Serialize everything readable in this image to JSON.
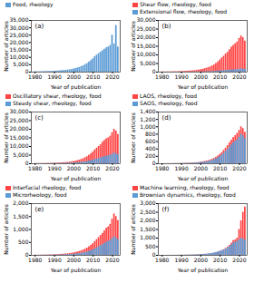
{
  "chart_data": [
    {
      "type": "bar",
      "annotations": [
        "(a)"
      ],
      "xlabel": "Year of publication",
      "ylabel": "Number of articles",
      "x": [
        1980,
        1981,
        1982,
        1983,
        1984,
        1985,
        1986,
        1987,
        1988,
        1989,
        1990,
        1991,
        1992,
        1993,
        1994,
        1995,
        1996,
        1997,
        1998,
        1999,
        2000,
        2001,
        2002,
        2003,
        2004,
        2005,
        2006,
        2007,
        2008,
        2009,
        2010,
        2011,
        2012,
        2013,
        2014,
        2015,
        2016,
        2017,
        2018,
        2019,
        2020,
        2021,
        2022,
        2023
      ],
      "series": [
        {
          "name": "Food, rheology",
          "color": "#5B9BD5",
          "values": [
            200,
            220,
            240,
            260,
            300,
            350,
            400,
            450,
            500,
            560,
            630,
            700,
            800,
            900,
            1000,
            1100,
            1250,
            1400,
            1600,
            1800,
            2100,
            2400,
            2800,
            3200,
            3700,
            4300,
            5000,
            5800,
            6800,
            7800,
            9000,
            10500,
            11500,
            12500,
            13500,
            14500,
            15500,
            16500,
            17000,
            18000,
            25000,
            19000,
            31500,
            17000
          ]
        }
      ],
      "xlim": [
        1978,
        2024
      ],
      "xticks": [
        1980,
        1990,
        2000,
        2010,
        2020
      ],
      "ylim": [
        0,
        35000
      ],
      "yticks": [
        0,
        {
          "value": 5000,
          "label": "5,000"
        },
        {
          "value": 10000,
          "label": "10,000"
        },
        {
          "value": 15000,
          "label": "15,000"
        },
        {
          "value": 20000,
          "label": "20,000"
        },
        {
          "value": 25000,
          "label": "25,000"
        },
        {
          "value": 30000,
          "label": "30,000"
        },
        {
          "value": 35000,
          "label": "35,000"
        }
      ]
    },
    {
      "type": "bar",
      "annotations": [
        "(b)"
      ],
      "xlabel": "Year of publication",
      "ylabel": "Number of articles",
      "x": [
        1980,
        1981,
        1982,
        1983,
        1984,
        1985,
        1986,
        1987,
        1988,
        1989,
        1990,
        1991,
        1992,
        1993,
        1994,
        1995,
        1996,
        1997,
        1998,
        1999,
        2000,
        2001,
        2002,
        2003,
        2004,
        2005,
        2006,
        2007,
        2008,
        2009,
        2010,
        2011,
        2012,
        2013,
        2014,
        2015,
        2016,
        2017,
        2018,
        2019,
        2020,
        2021,
        2022,
        2023
      ],
      "series": [
        {
          "name": "Shear flow, rheology, food",
          "color": "#FF4444",
          "values": [
            100,
            110,
            120,
            130,
            150,
            170,
            200,
            230,
            260,
            300,
            350,
            400,
            460,
            520,
            600,
            680,
            780,
            900,
            1050,
            1200,
            1400,
            1600,
            1900,
            2200,
            2600,
            3000,
            3600,
            4200,
            5000,
            5900,
            7000,
            8200,
            9200,
            10500,
            11500,
            13000,
            14500,
            15500,
            16500,
            17500,
            19500,
            21000,
            20000,
            18000
          ]
        },
        {
          "name": "Extensional flow, rheology, food",
          "color": "#5B9BD5",
          "values": [
            10,
            11,
            12,
            13,
            15,
            17,
            20,
            23,
            26,
            30,
            35,
            40,
            46,
            52,
            60,
            68,
            78,
            90,
            105,
            120,
            140,
            160,
            190,
            220,
            260,
            300,
            360,
            420,
            500,
            600,
            700,
            800,
            900,
            1000,
            1100,
            1200,
            1300,
            1350,
            1400,
            1500,
            1700,
            1900,
            1800,
            1600
          ]
        }
      ],
      "xlim": [
        1978,
        2024
      ],
      "xticks": [
        1980,
        1990,
        2000,
        2010,
        2020
      ],
      "ylim": [
        0,
        30000
      ],
      "yticks": [
        0,
        {
          "value": 5000,
          "label": "5,000"
        },
        {
          "value": 10000,
          "label": "10,000"
        },
        {
          "value": 15000,
          "label": "15,000"
        },
        {
          "value": 20000,
          "label": "20,000"
        },
        {
          "value": 25000,
          "label": "25,000"
        },
        {
          "value": 30000,
          "label": "30,000"
        }
      ]
    },
    {
      "type": "bar",
      "annotations": [
        "(c)"
      ],
      "xlabel": "Year of publication",
      "ylabel": "Number of articles",
      "x": [
        1980,
        1981,
        1982,
        1983,
        1984,
        1985,
        1986,
        1987,
        1988,
        1989,
        1990,
        1991,
        1992,
        1993,
        1994,
        1995,
        1996,
        1997,
        1998,
        1999,
        2000,
        2001,
        2002,
        2003,
        2004,
        2005,
        2006,
        2007,
        2008,
        2009,
        2010,
        2011,
        2012,
        2013,
        2014,
        2015,
        2016,
        2017,
        2018,
        2019,
        2020,
        2021,
        2022,
        2023
      ],
      "series": [
        {
          "name": "Oscillatory shear, rheology, food",
          "color": "#FF4444",
          "values": [
            80,
            90,
            100,
            110,
            130,
            150,
            170,
            200,
            230,
            260,
            300,
            340,
            400,
            460,
            520,
            600,
            700,
            800,
            950,
            1100,
            1300,
            1500,
            1800,
            2100,
            2500,
            2900,
            3500,
            4100,
            4900,
            5700,
            6800,
            8000,
            9000,
            10000,
            11000,
            12500,
            13500,
            14500,
            15000,
            16000,
            18000,
            20000,
            19000,
            17000
          ]
        },
        {
          "name": "Steady shear, rheology, food",
          "color": "#5B9BD5",
          "values": [
            30,
            33,
            36,
            40,
            46,
            52,
            60,
            68,
            78,
            90,
            100,
            120,
            140,
            160,
            180,
            210,
            240,
            280,
            330,
            380,
            440,
            500,
            600,
            700,
            820,
            950,
            1100,
            1300,
            1600,
            1800,
            2100,
            2500,
            2800,
            3100,
            3400,
            3800,
            4100,
            4400,
            4600,
            4900,
            5500,
            6200,
            5800,
            5200
          ]
        }
      ],
      "xlim": [
        1978,
        2024
      ],
      "xticks": [
        1980,
        1990,
        2000,
        2010,
        2020
      ],
      "ylim": [
        0,
        30000
      ],
      "yticks": [
        0,
        {
          "value": 5000,
          "label": "5,000"
        },
        {
          "value": 10000,
          "label": "10,000"
        },
        {
          "value": 15000,
          "label": "15,000"
        },
        {
          "value": 20000,
          "label": "20,000"
        },
        {
          "value": 25000,
          "label": "25,000"
        },
        {
          "value": 30000,
          "label": "30,000"
        }
      ]
    },
    {
      "type": "bar",
      "annotations": [
        "(d)"
      ],
      "xlabel": "Year of publication",
      "ylabel": "Number of articles",
      "x": [
        1980,
        1981,
        1982,
        1983,
        1984,
        1985,
        1986,
        1987,
        1988,
        1989,
        1990,
        1991,
        1992,
        1993,
        1994,
        1995,
        1996,
        1997,
        1998,
        1999,
        2000,
        2001,
        2002,
        2003,
        2004,
        2005,
        2006,
        2007,
        2008,
        2009,
        2010,
        2011,
        2012,
        2013,
        2014,
        2015,
        2016,
        2017,
        2018,
        2019,
        2020,
        2021,
        2022,
        2023
      ],
      "series": [
        {
          "name": "LAOS, rheology, food",
          "color": "#FF4444",
          "values": [
            1,
            1,
            2,
            2,
            2,
            3,
            3,
            4,
            5,
            6,
            7,
            8,
            10,
            12,
            14,
            17,
            20,
            24,
            28,
            33,
            40,
            50,
            60,
            70,
            85,
            100,
            120,
            145,
            175,
            210,
            250,
            300,
            360,
            420,
            490,
            570,
            640,
            710,
            760,
            820,
            900,
            1000,
            950,
            850
          ]
        },
        {
          "name": "SAOS, rheology, food",
          "color": "#5B9BD5",
          "values": [
            1,
            1,
            1,
            2,
            2,
            2,
            3,
            3,
            4,
            5,
            6,
            7,
            8,
            9,
            11,
            13,
            15,
            18,
            22,
            26,
            31,
            37,
            45,
            54,
            65,
            78,
            94,
            113,
            136,
            163,
            195,
            235,
            280,
            330,
            390,
            450,
            510,
            570,
            610,
            650,
            720,
            800,
            760,
            680
          ]
        }
      ],
      "xlim": [
        1978,
        2024
      ],
      "xticks": [
        1980,
        1990,
        2000,
        2010,
        2020
      ],
      "ylim": [
        0,
        1400
      ],
      "yticks": [
        0,
        200,
        400,
        600,
        800,
        {
          "value": 1000,
          "label": "1,000"
        },
        {
          "value": 1200,
          "label": "1,200"
        },
        {
          "value": 1400,
          "label": "1,400"
        }
      ]
    },
    {
      "type": "bar",
      "annotations": [
        "(e)"
      ],
      "xlabel": "Year of publication",
      "ylabel": "Number of articles",
      "x": [
        1980,
        1981,
        1982,
        1983,
        1984,
        1985,
        1986,
        1987,
        1988,
        1989,
        1990,
        1991,
        1992,
        1993,
        1994,
        1995,
        1996,
        1997,
        1998,
        1999,
        2000,
        2001,
        2002,
        2003,
        2004,
        2005,
        2006,
        2007,
        2008,
        2009,
        2010,
        2011,
        2012,
        2013,
        2014,
        2015,
        2016,
        2017,
        2018,
        2019,
        2020,
        2021,
        2022,
        2023
      ],
      "series": [
        {
          "name": "Interfacial rheology, food",
          "color": "#FF4444",
          "values": [
            5,
            6,
            7,
            8,
            9,
            10,
            12,
            14,
            16,
            19,
            22,
            25,
            29,
            34,
            39,
            45,
            52,
            60,
            70,
            82,
            95,
            110,
            130,
            150,
            175,
            205,
            240,
            280,
            330,
            385,
            450,
            530,
            610,
            690,
            770,
            850,
            950,
            1050,
            1100,
            1200,
            1400,
            1600,
            1500,
            1350
          ]
        },
        {
          "name": "Microrheology, food",
          "color": "#5B9BD5",
          "values": [
            3,
            3,
            4,
            4,
            5,
            5,
            6,
            7,
            8,
            9,
            11,
            12,
            14,
            16,
            18,
            21,
            24,
            28,
            33,
            38,
            44,
            51,
            60,
            70,
            82,
            95,
            110,
            130,
            155,
            180,
            210,
            250,
            290,
            330,
            370,
            410,
            460,
            510,
            540,
            580,
            650,
            720,
            680,
            610
          ]
        }
      ],
      "xlim": [
        1978,
        2024
      ],
      "xticks": [
        1980,
        1990,
        2000,
        2010,
        2020
      ],
      "ylim": [
        0,
        2000
      ],
      "yticks": [
        0,
        500,
        {
          "value": 1000,
          "label": "1,000"
        },
        {
          "value": 1500,
          "label": "1,500"
        },
        {
          "value": 2000,
          "label": "2,000"
        }
      ]
    },
    {
      "type": "bar",
      "annotations": [
        "(f)"
      ],
      "xlabel": "Year of publication",
      "ylabel": "Number of articles",
      "x": [
        1980,
        1981,
        1982,
        1983,
        1984,
        1985,
        1986,
        1987,
        1988,
        1989,
        1990,
        1991,
        1992,
        1993,
        1994,
        1995,
        1996,
        1997,
        1998,
        1999,
        2000,
        2001,
        2002,
        2003,
        2004,
        2005,
        2006,
        2007,
        2008,
        2009,
        2010,
        2011,
        2012,
        2013,
        2014,
        2015,
        2016,
        2017,
        2018,
        2019,
        2020,
        2021,
        2022,
        2023
      ],
      "series": [
        {
          "name": "Machine learning, rheology, food",
          "color": "#FF4444",
          "values": [
            1,
            1,
            1,
            2,
            2,
            2,
            3,
            3,
            4,
            5,
            6,
            7,
            8,
            10,
            12,
            14,
            17,
            20,
            24,
            28,
            33,
            40,
            48,
            58,
            70,
            85,
            103,
            125,
            152,
            184,
            223,
            270,
            327,
            396,
            480,
            582,
            705,
            854,
            900,
            1000,
            1500,
            2000,
            2500,
            2800
          ]
        },
        {
          "name": "Brownian dynamics, rheology, food",
          "color": "#5B9BD5",
          "values": [
            2,
            2,
            3,
            3,
            4,
            4,
            5,
            6,
            7,
            8,
            9,
            11,
            13,
            15,
            17,
            20,
            23,
            27,
            32,
            37,
            43,
            51,
            61,
            72,
            85,
            100,
            118,
            139,
            164,
            193,
            228,
            268,
            316,
            372,
            438,
            516,
            608,
            717,
            760,
            820,
            900,
            1000,
            950,
            880
          ]
        }
      ],
      "xlim": [
        1978,
        2024
      ],
      "xticks": [
        1980,
        1990,
        2000,
        2010,
        2020
      ],
      "ylim": [
        0,
        3000
      ],
      "yticks": [
        0,
        500,
        {
          "value": 1000,
          "label": "1,000"
        },
        {
          "value": 1500,
          "label": "1,500"
        },
        {
          "value": 2000,
          "label": "2,000"
        },
        {
          "value": 2500,
          "label": "2,500"
        },
        {
          "value": 3000,
          "label": "3,000"
        }
      ]
    }
  ]
}
